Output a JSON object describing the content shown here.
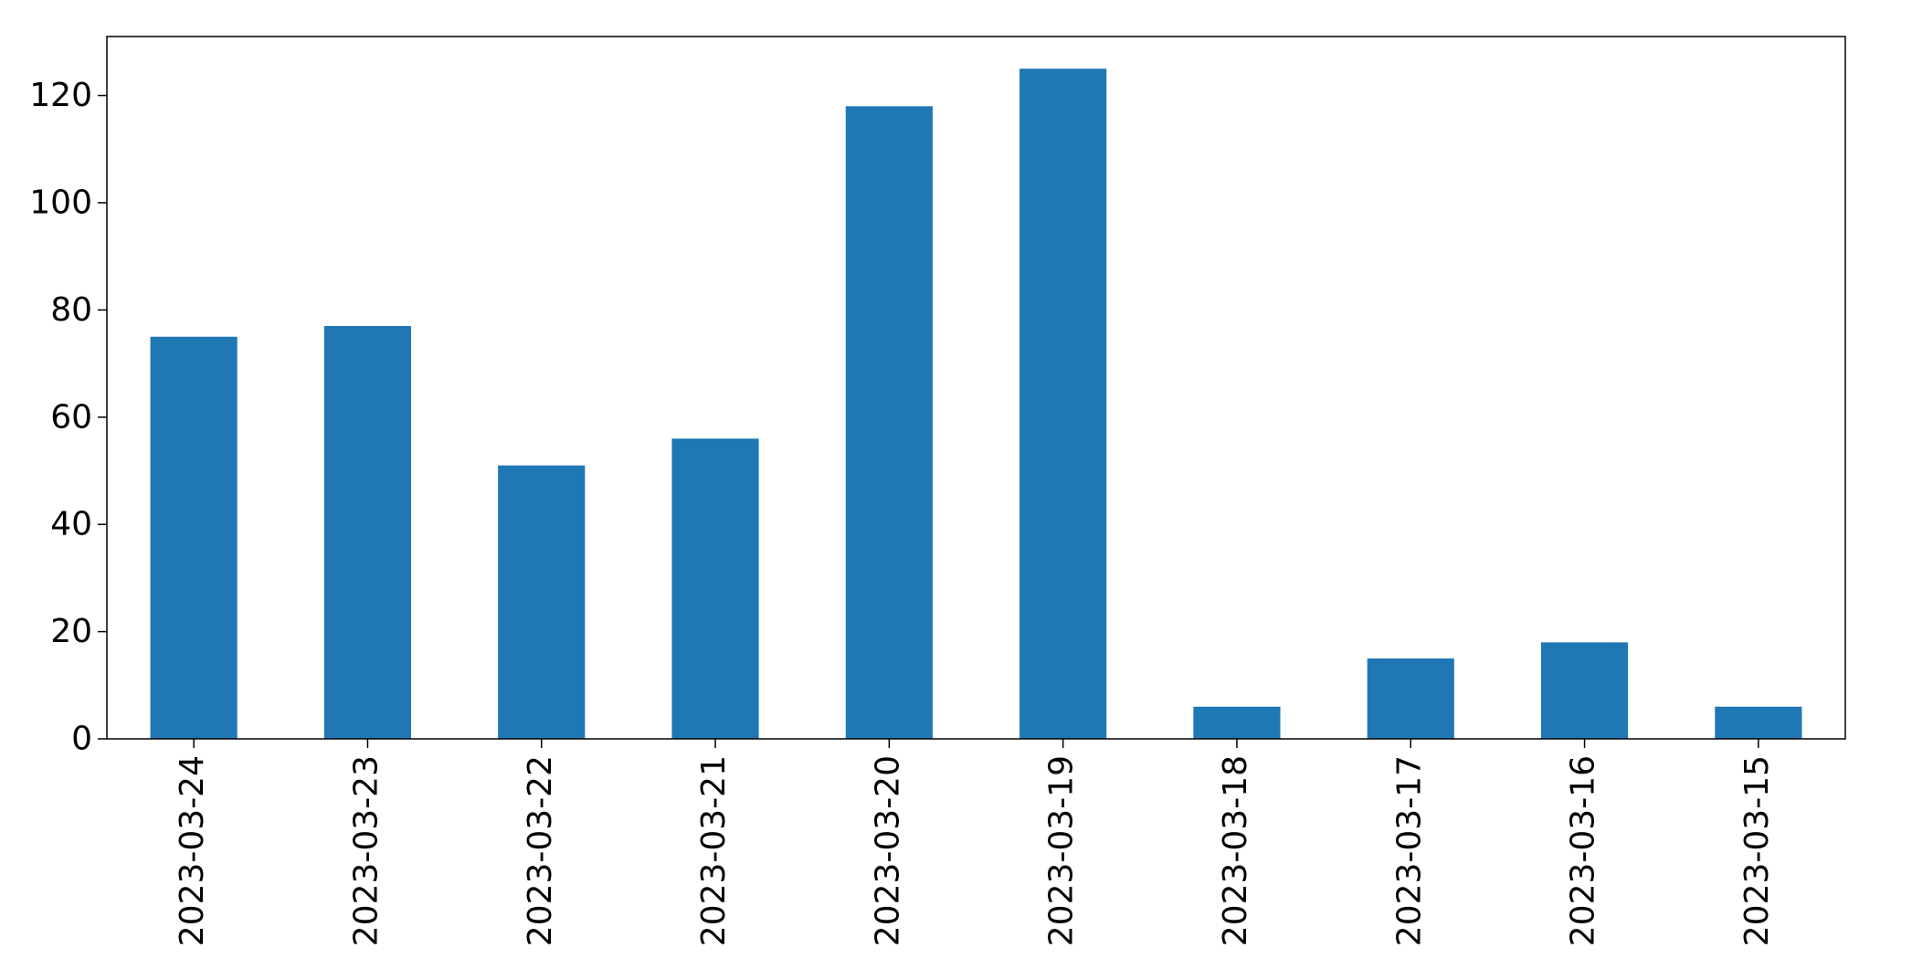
{
  "chart_data": {
    "type": "bar",
    "title": "",
    "xlabel": "",
    "ylabel": "",
    "categories": [
      "2023-03-24",
      "2023-03-23",
      "2023-03-22",
      "2023-03-21",
      "2023-03-20",
      "2023-03-19",
      "2023-03-18",
      "2023-03-17",
      "2023-03-16",
      "2023-03-15"
    ],
    "values": [
      75,
      77,
      51,
      56,
      118,
      125,
      6,
      15,
      18,
      6
    ],
    "ylim": [
      0,
      131
    ],
    "yticks": [
      0,
      20,
      40,
      60,
      80,
      100,
      120
    ],
    "bar_color": "#1f77b4",
    "grid": false,
    "legend": "none"
  }
}
